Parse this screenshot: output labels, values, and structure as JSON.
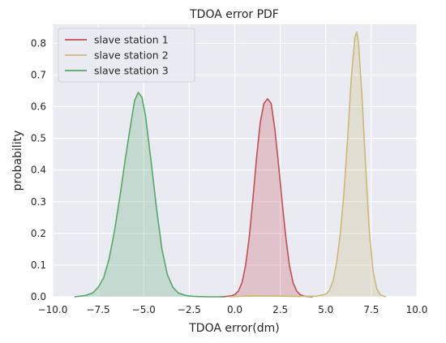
{
  "chart_data": {
    "type": "area",
    "title": "TDOA error PDF",
    "xlabel": "TDOA error(dm)",
    "ylabel": "probability",
    "xlim": [
      -10.0,
      10.0
    ],
    "ylim": [
      0.0,
      0.86
    ],
    "xticks": [
      -10.0,
      -7.5,
      -5.0,
      -2.5,
      0.0,
      2.5,
      5.0,
      7.5,
      10.0
    ],
    "xtick_labels": [
      "−10.0",
      "−7.5",
      "−5.0",
      "−2.5",
      "0.0",
      "2.5",
      "5.0",
      "7.5",
      "10.0"
    ],
    "yticks": [
      0.0,
      0.1,
      0.2,
      0.3,
      0.4,
      0.5,
      0.6,
      0.7,
      0.8
    ],
    "ytick_labels": [
      "0.0",
      "0.1",
      "0.2",
      "0.3",
      "0.4",
      "0.5",
      "0.6",
      "0.7",
      "0.8"
    ],
    "grid": true,
    "legend_position": "top-left",
    "background_color": "#eaeaf2",
    "series": [
      {
        "name": "slave station 1",
        "color": "#c44e52",
        "x": [
          -0.8,
          -0.5,
          -0.2,
          0.0,
          0.2,
          0.4,
          0.6,
          0.8,
          1.0,
          1.2,
          1.4,
          1.6,
          1.8,
          2.0,
          2.2,
          2.4,
          2.6,
          2.8,
          3.0,
          3.2,
          3.4,
          3.6,
          3.9,
          4.3
        ],
        "y": [
          0.0,
          0.001,
          0.003,
          0.007,
          0.018,
          0.045,
          0.1,
          0.19,
          0.31,
          0.44,
          0.55,
          0.61,
          0.625,
          0.61,
          0.53,
          0.42,
          0.3,
          0.19,
          0.1,
          0.045,
          0.018,
          0.006,
          0.001,
          0.0
        ]
      },
      {
        "name": "slave station 2",
        "color": "#ccb974",
        "x": [
          -0.3,
          0.5,
          1.5,
          2.5,
          3.5,
          4.5,
          5.0,
          5.2,
          5.4,
          5.6,
          5.8,
          6.0,
          6.2,
          6.4,
          6.6,
          6.7,
          6.8,
          7.0,
          7.2,
          7.4,
          7.6,
          7.8,
          8.0,
          8.3
        ],
        "y": [
          0.0,
          0.002,
          0.003,
          0.002,
          0.001,
          0.002,
          0.008,
          0.02,
          0.05,
          0.11,
          0.2,
          0.33,
          0.5,
          0.69,
          0.82,
          0.835,
          0.8,
          0.62,
          0.4,
          0.2,
          0.08,
          0.025,
          0.006,
          0.0
        ]
      },
      {
        "name": "slave station 3",
        "color": "#55a868",
        "x": [
          -8.8,
          -8.2,
          -7.8,
          -7.5,
          -7.2,
          -6.9,
          -6.6,
          -6.3,
          -6.0,
          -5.7,
          -5.5,
          -5.3,
          -5.1,
          -4.9,
          -4.6,
          -4.3,
          -4.0,
          -3.7,
          -3.4,
          -3.1,
          -2.7,
          -2.2,
          -1.5,
          -0.5
        ],
        "y": [
          0.0,
          0.004,
          0.012,
          0.03,
          0.06,
          0.12,
          0.21,
          0.32,
          0.44,
          0.55,
          0.62,
          0.645,
          0.63,
          0.57,
          0.43,
          0.28,
          0.15,
          0.07,
          0.03,
          0.012,
          0.004,
          0.001,
          0.0,
          0.0
        ]
      }
    ]
  }
}
